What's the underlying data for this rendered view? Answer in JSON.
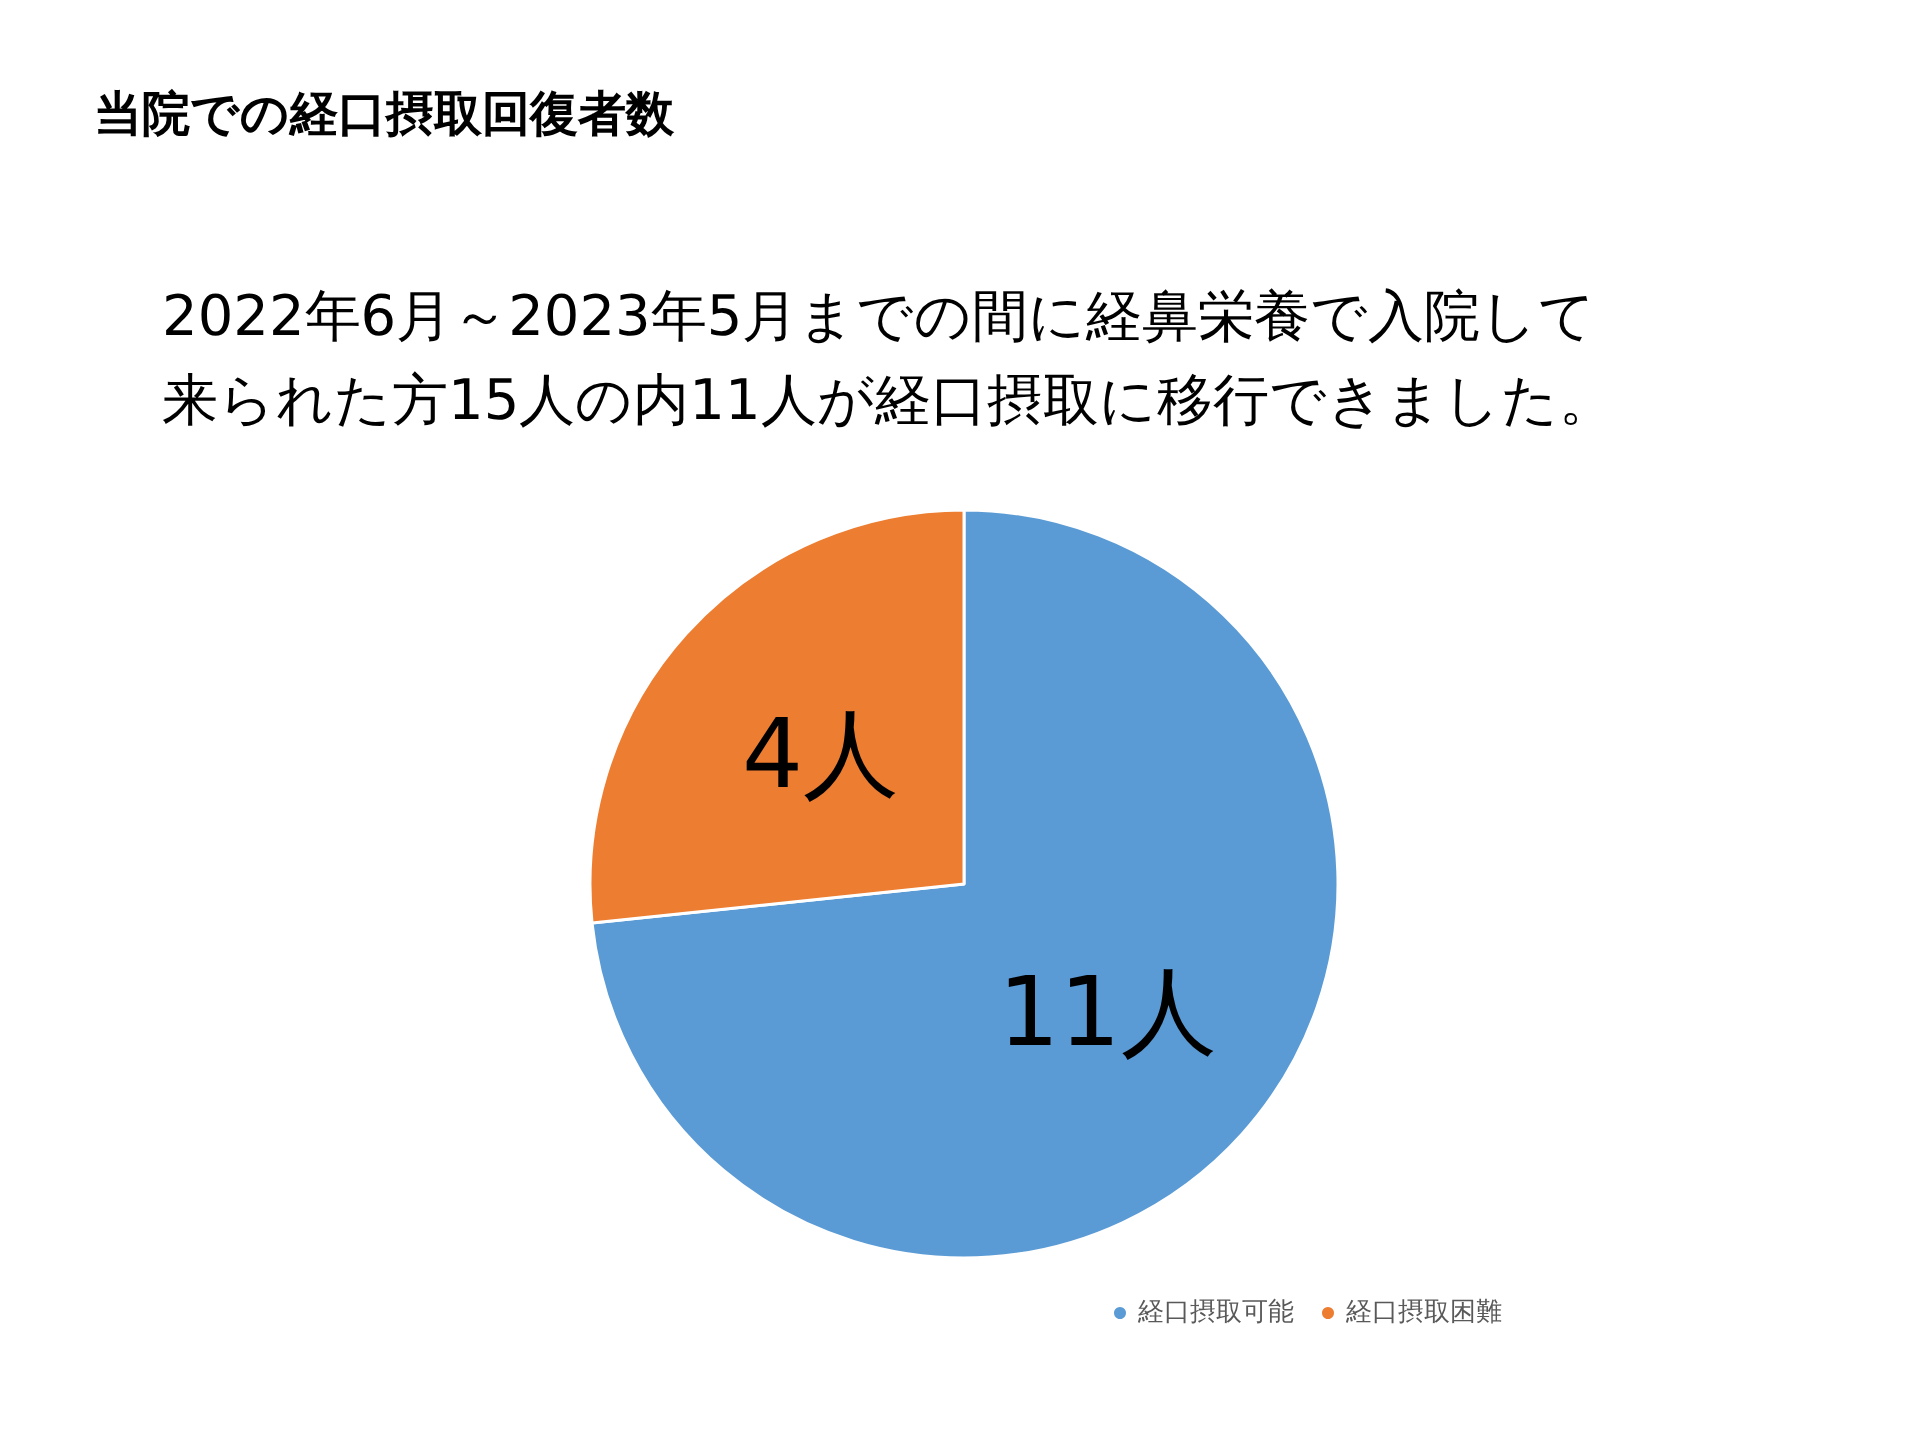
{
  "chart_data": {
    "type": "pie",
    "title": "当院での経口摂取回復者数",
    "subtitle": "2022年6月～2023年5月までの間に経鼻栄養で入院して来られた方15人の内11人が経口摂取に移行できました。",
    "categories": [
      "経口摂取可能",
      "経口摂取困難"
    ],
    "values": [
      11,
      4
    ],
    "colors": [
      "#5b9bd5",
      "#ed7d31"
    ],
    "value_labels": [
      "11人",
      "4人"
    ],
    "legend": "bottom right"
  }
}
